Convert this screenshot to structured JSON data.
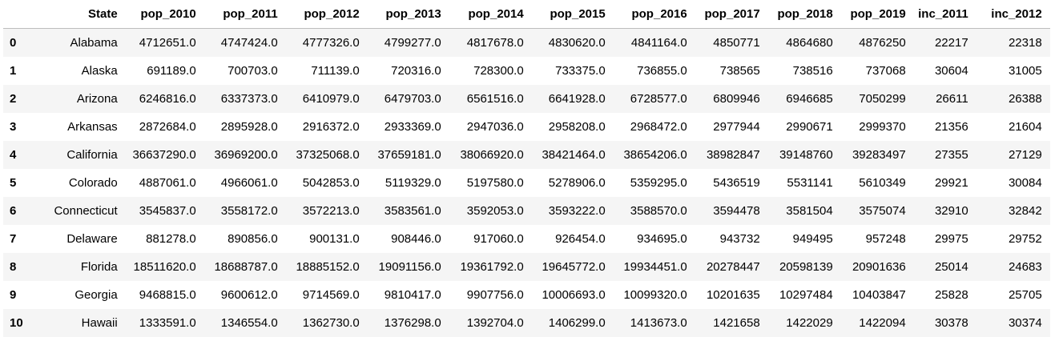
{
  "table": {
    "index_header": "",
    "columns": [
      "State",
      "pop_2010",
      "pop_2011",
      "pop_2012",
      "pop_2013",
      "pop_2014",
      "pop_2015",
      "pop_2016",
      "pop_2017",
      "pop_2018",
      "pop_2019",
      "inc_2011",
      "inc_2012"
    ],
    "rows": [
      {
        "index": "0",
        "cells": [
          "Alabama",
          "4712651.0",
          "4747424.0",
          "4777326.0",
          "4799277.0",
          "4817678.0",
          "4830620.0",
          "4841164.0",
          "4850771",
          "4864680",
          "4876250",
          "22217",
          "22318"
        ]
      },
      {
        "index": "1",
        "cells": [
          "Alaska",
          "691189.0",
          "700703.0",
          "711139.0",
          "720316.0",
          "728300.0",
          "733375.0",
          "736855.0",
          "738565",
          "738516",
          "737068",
          "30604",
          "31005"
        ]
      },
      {
        "index": "2",
        "cells": [
          "Arizona",
          "6246816.0",
          "6337373.0",
          "6410979.0",
          "6479703.0",
          "6561516.0",
          "6641928.0",
          "6728577.0",
          "6809946",
          "6946685",
          "7050299",
          "26611",
          "26388"
        ]
      },
      {
        "index": "3",
        "cells": [
          "Arkansas",
          "2872684.0",
          "2895928.0",
          "2916372.0",
          "2933369.0",
          "2947036.0",
          "2958208.0",
          "2968472.0",
          "2977944",
          "2990671",
          "2999370",
          "21356",
          "21604"
        ]
      },
      {
        "index": "4",
        "cells": [
          "California",
          "36637290.0",
          "36969200.0",
          "37325068.0",
          "37659181.0",
          "38066920.0",
          "38421464.0",
          "38654206.0",
          "38982847",
          "39148760",
          "39283497",
          "27355",
          "27129"
        ]
      },
      {
        "index": "5",
        "cells": [
          "Colorado",
          "4887061.0",
          "4966061.0",
          "5042853.0",
          "5119329.0",
          "5197580.0",
          "5278906.0",
          "5359295.0",
          "5436519",
          "5531141",
          "5610349",
          "29921",
          "30084"
        ]
      },
      {
        "index": "6",
        "cells": [
          "Connecticut",
          "3545837.0",
          "3558172.0",
          "3572213.0",
          "3583561.0",
          "3592053.0",
          "3593222.0",
          "3588570.0",
          "3594478",
          "3581504",
          "3575074",
          "32910",
          "32842"
        ]
      },
      {
        "index": "7",
        "cells": [
          "Delaware",
          "881278.0",
          "890856.0",
          "900131.0",
          "908446.0",
          "917060.0",
          "926454.0",
          "934695.0",
          "943732",
          "949495",
          "957248",
          "29975",
          "29752"
        ]
      },
      {
        "index": "8",
        "cells": [
          "Florida",
          "18511620.0",
          "18688787.0",
          "18885152.0",
          "19091156.0",
          "19361792.0",
          "19645772.0",
          "19934451.0",
          "20278447",
          "20598139",
          "20901636",
          "25014",
          "24683"
        ]
      },
      {
        "index": "9",
        "cells": [
          "Georgia",
          "9468815.0",
          "9600612.0",
          "9714569.0",
          "9810417.0",
          "9907756.0",
          "10006693.0",
          "10099320.0",
          "10201635",
          "10297484",
          "10403847",
          "25828",
          "25705"
        ]
      },
      {
        "index": "10",
        "cells": [
          "Hawaii",
          "1333591.0",
          "1346554.0",
          "1362730.0",
          "1376298.0",
          "1392704.0",
          "1406299.0",
          "1413673.0",
          "1421658",
          "1422029",
          "1422094",
          "30378",
          "30374"
        ]
      }
    ]
  },
  "colors": {
    "stripe": "#f5f5f5",
    "header_rule": "#bdbdbd",
    "text": "#000000"
  }
}
